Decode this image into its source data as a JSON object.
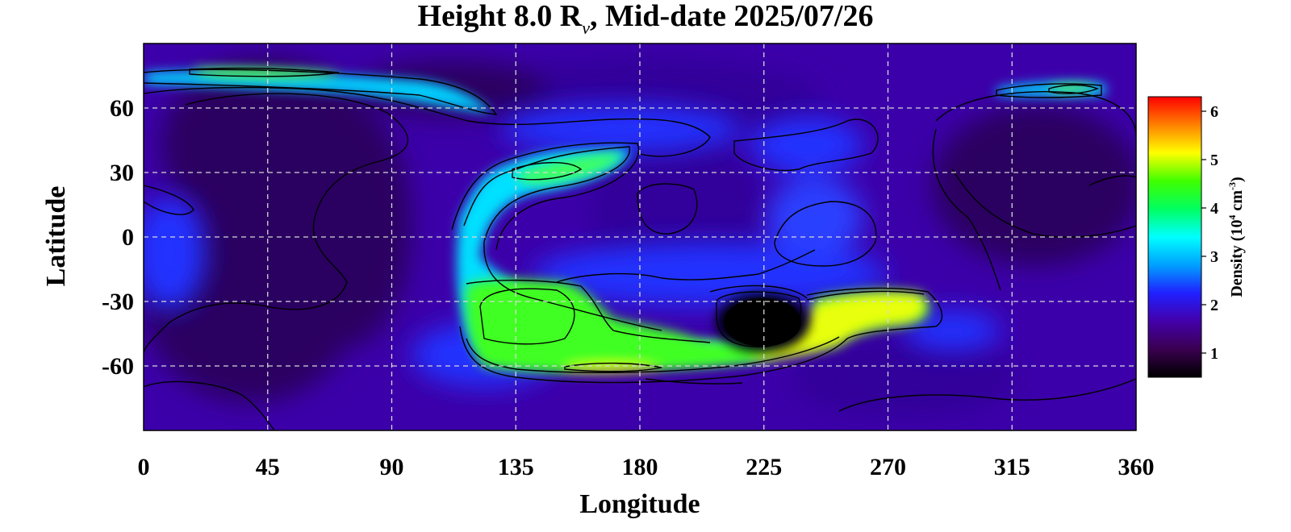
{
  "chart_data": {
    "type": "heatmap",
    "title": {
      "prefix": "Height 8.0 R",
      "subscript": "ν",
      "suffix": ", Mid-date 2025/07/26"
    },
    "xlabel": "Longitude",
    "ylabel": "Latitude",
    "xlim": [
      0,
      360
    ],
    "ylim": [
      -90,
      90
    ],
    "x_ticks": [
      "0",
      "45",
      "90",
      "135",
      "180",
      "225",
      "270",
      "315",
      "360"
    ],
    "y_ticks": [
      "60",
      "30",
      "0",
      "-30",
      "-60"
    ],
    "grid": true,
    "colorbar": {
      "label_prefix": "Density (10",
      "label_exp1": "4",
      "label_mid": " cm",
      "label_exp2": "-3",
      "label_suffix": ")",
      "range": [
        0.5,
        6.3
      ],
      "ticks": [
        "6",
        "5",
        "4",
        "3",
        "2",
        "1"
      ],
      "colors": [
        "#000000",
        "#3a0050",
        "#4400aa",
        "#2020ff",
        "#00a0ff",
        "#00ffff",
        "#00ff60",
        "#40ff00",
        "#ffff00",
        "#ff8000",
        "#ff0000"
      ]
    },
    "features": [
      {
        "lon": 88,
        "lat": 76,
        "density": 4.2
      },
      {
        "lon": 30,
        "lat": 77,
        "density": 4.3
      },
      {
        "lon": 150,
        "lat": 27,
        "density": 3.6
      },
      {
        "lon": 340,
        "lat": 68,
        "density": 3.8
      },
      {
        "lon": 140,
        "lat": -37,
        "density": 4.3
      },
      {
        "lon": 170,
        "lat": -55,
        "density": 4.2
      },
      {
        "lon": 215,
        "lat": -58,
        "density": 4.0
      },
      {
        "lon": 262,
        "lat": -42,
        "density": 5.0
      },
      {
        "lon": 285,
        "lat": -32,
        "density": 4.8
      },
      {
        "lon": 255,
        "lat": -50,
        "density": 4.8
      },
      {
        "lon": 230,
        "lat": -40,
        "density": 0.6
      },
      {
        "lon": 50,
        "lat": 40,
        "density": 0.9
      },
      {
        "lon": 70,
        "lat": -40,
        "density": 0.9
      },
      {
        "lon": 335,
        "lat": 35,
        "density": 0.9
      },
      {
        "lon": 195,
        "lat": 10,
        "density": 1.1
      }
    ]
  }
}
